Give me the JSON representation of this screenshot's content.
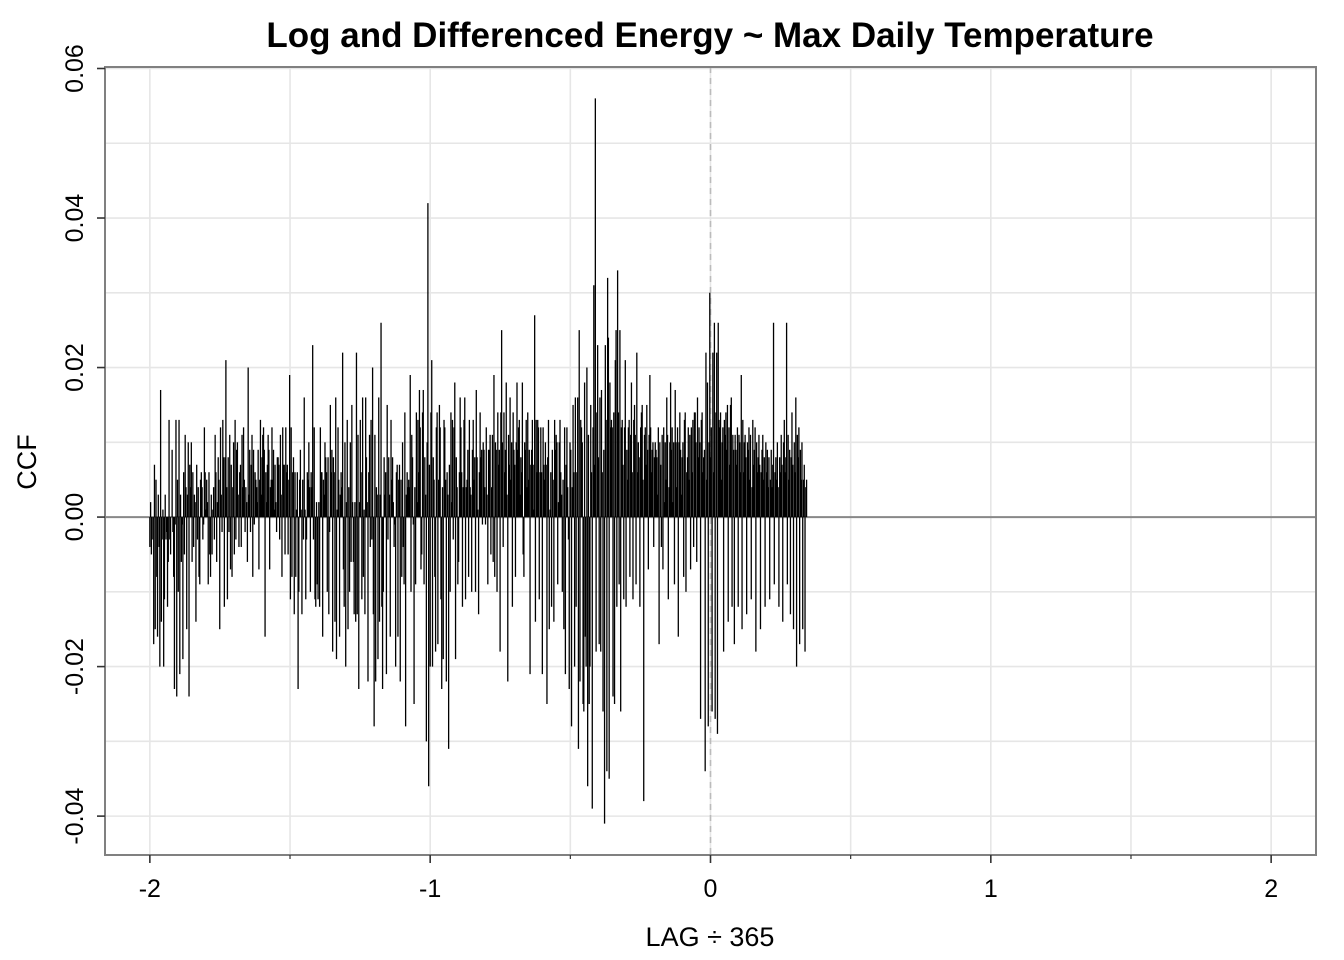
{
  "chart_data": {
    "type": "bar",
    "title": "Log and Differenced Energy ~ Max Daily Temperature",
    "xlabel": "LAG ÷ 365",
    "ylabel": "CCF",
    "xlim": [
      -2.16,
      2.16
    ],
    "ylim": [
      -0.0452,
      0.0602
    ],
    "x_ticks": [
      -2,
      -1,
      0,
      1,
      2
    ],
    "x_tick_labels": [
      "-2",
      "-1",
      "0",
      "1",
      "2"
    ],
    "y_ticks": [
      -0.04,
      -0.02,
      0.0,
      0.02,
      0.04,
      0.06
    ],
    "y_tick_labels": [
      "-0.04",
      "-0.02",
      "0.00",
      "0.02",
      "0.04",
      "0.06"
    ],
    "grid": true,
    "x_step": 0.00274,
    "x_start": -2,
    "y_reference_line": 0,
    "x_reference_line": 0,
    "color": "#000000",
    "values": [
      -0.004,
      0.002,
      -0.005,
      -0.003,
      0.0,
      -0.017,
      0.007,
      -0.015,
      0.005,
      -0.008,
      -0.016,
      0.003,
      -0.004,
      -0.02,
      0.017,
      -0.014,
      -0.003,
      0.001,
      -0.02,
      -0.011,
      0.003,
      -0.003,
      -0.002,
      -0.012,
      -0.006,
      0.013,
      -0.003,
      -0.005,
      0.0,
      0.009,
      -0.002,
      -0.008,
      -0.023,
      -0.001,
      0.013,
      -0.024,
      0.005,
      -0.01,
      0.013,
      -0.021,
      0.003,
      -0.006,
      -0.001,
      -0.019,
      0.006,
      -0.005,
      0.011,
      0.004,
      -0.015,
      0.003,
      0.01,
      -0.024,
      0.007,
      0.004,
      0.01,
      -0.006,
      0.006,
      -0.004,
      0.003,
      0.002,
      -0.014,
      0.007,
      -0.003,
      0.004,
      -0.008,
      -0.009,
      0.005,
      0.006,
      0.004,
      -0.003,
      -0.001,
      0.012,
      0.006,
      0.001,
      0.005,
      0.002,
      -0.009,
      0.006,
      -0.005,
      -0.008,
      0.003,
      -0.005,
      0.001,
      0.004,
      -0.003,
      0.011,
      0.006,
      -0.006,
      0.002,
      0.008,
      0.005,
      -0.015,
      0.012,
      0.003,
      -0.002,
      0.013,
      0.008,
      -0.012,
      0.008,
      0.021,
      0.004,
      -0.011,
      0.008,
      -0.002,
      0.011,
      -0.007,
      0.007,
      -0.008,
      0.004,
      0.01,
      -0.005,
      0.013,
      -0.003,
      0.009,
      0.01,
      0.003,
      -0.004,
      0.006,
      0.007,
      -0.004,
      0.011,
      0.004,
      0.012,
      0.005,
      -0.002,
      0.004,
      0.002,
      -0.006,
      0.02,
      0.003,
      0.009,
      -0.002,
      0.007,
      0.011,
      -0.008,
      0.009,
      -0.001,
      0.006,
      0.005,
      0.004,
      0.002,
      0.009,
      -0.007,
      0.005,
      0.013,
      0.003,
      0.008,
      0.011,
      0.012,
      0.009,
      -0.016,
      0.006,
      0.002,
      0.007,
      0.011,
      0.009,
      -0.007,
      0.004,
      0.005,
      0.012,
      0.005,
      0.009,
      0.001,
      0.007,
      0.002,
      -0.002,
      0.008,
      0.008,
      0.007,
      -0.003,
      0.011,
      0.003,
      -0.008,
      0.012,
      0.007,
      0.007,
      -0.005,
      0.012,
      0.006,
      0.007,
      -0.005,
      0.005,
      0.019,
      -0.011,
      0.012,
      -0.008,
      0.006,
      0.008,
      -0.013,
      0.006,
      -0.008,
      0.001,
      0.006,
      -0.023,
      -0.01,
      0.005,
      0.009,
      0.001,
      -0.013,
      0.005,
      -0.003,
      0.016,
      0.001,
      -0.011,
      -0.003,
      0.006,
      0.005,
      0.01,
      0.004,
      -0.01,
      0.006,
      0.004,
      0.023,
      -0.003,
      0.012,
      -0.011,
      -0.012,
      0.002,
      -0.009,
      -0.011,
      0.002,
      -0.012,
      0.012,
      0.006,
      0.006,
      -0.016,
      0.005,
      0.003,
      0.01,
      0.008,
      0.006,
      -0.01,
      0.008,
      -0.013,
      -0.002,
      0.015,
      0.006,
      0.009,
      -0.018,
      0.008,
      0.006,
      -0.014,
      0.016,
      -0.019,
      0.001,
      0.012,
      0.005,
      -0.016,
      0.003,
      0.006,
      0.004,
      0.022,
      -0.007,
      -0.012,
      0.01,
      -0.02,
      0.002,
      0.013,
      -0.015,
      0.004,
      -0.01,
      0.01,
      -0.006,
      0.015,
      0.002,
      -0.006,
      -0.013,
      0.002,
      -0.014,
      0.022,
      -0.013,
      0.011,
      -0.023,
      0.002,
      0.013,
      0.006,
      -0.011,
      0.016,
      -0.008,
      0.001,
      -0.013,
      0.016,
      0.008,
      0.002,
      -0.022,
      0.006,
      0.011,
      -0.004,
      0.013,
      -0.003,
      0.02,
      -0.013,
      -0.028,
      0.011,
      -0.022,
      0.004,
      0.003,
      -0.019,
      0.016,
      -0.014,
      0.003,
      0.026,
      -0.012,
      -0.023,
      -0.01,
      0.008,
      0.003,
      0.006,
      -0.021,
      0.015,
      -0.003,
      0.008,
      0.003,
      -0.016,
      0.013,
      0.005,
      0.008,
      0.002,
      -0.004,
      -0.001,
      -0.02,
      0.006,
      0.007,
      -0.016,
      0.005,
      0.007,
      -0.022,
      0.005,
      -0.008,
      0.01,
      -0.004,
      -0.009,
      0.014,
      -0.028,
      0.003,
      0.006,
      0.004,
      0.005,
      0.004,
      0.019,
      -0.01,
      0.011,
      0.008,
      -0.001,
      -0.025,
      0.004,
      -0.009,
      0.014,
      0.002,
      0.013,
      0.006,
      0.017,
      0.012,
      -0.007,
      -0.005,
      0.014,
      0.017,
      -0.009,
      0.008,
      0.003,
      -0.03,
      0.01,
      0.042,
      -0.036,
      0.007,
      -0.02,
      0.014,
      0.021,
      -0.02,
      0.008,
      0.005,
      -0.008,
      -0.018,
      0.012,
      0.014,
      -0.017,
      0.005,
      0.015,
      0.012,
      -0.011,
      -0.023,
      0.004,
      -0.019,
      0.013,
      0.012,
      0.005,
      -0.022,
      0.006,
      0.003,
      -0.031,
      0.007,
      -0.01,
      0.014,
      0.002,
      0.013,
      -0.003,
      0.012,
      0.018,
      -0.019,
      0.008,
      0.004,
      -0.009,
      -0.006,
      0.006,
      0.016,
      0.012,
      0.006,
      -0.012,
      0.004,
      0.013,
      0.016,
      -0.011,
      0.004,
      0.005,
      0.009,
      -0.008,
      0.013,
      0.004,
      0.003,
      -0.01,
      0.009,
      0.013,
      0.005,
      0.008,
      -0.01,
      0.017,
      0.008,
      0.001,
      -0.013,
      0.006,
      0.014,
      0.008,
      0.009,
      -0.001,
      0.01,
      0.009,
      0.004,
      -0.001,
      0.012,
      0.003,
      -0.009,
      0.009,
      0.009,
      0.011,
      -0.005,
      0.004,
      0.011,
      -0.006,
      0.019,
      -0.008,
      0.01,
      0.009,
      -0.01,
      0.014,
      0.007,
      0.009,
      -0.018,
      0.014,
      0.025,
      0.01,
      -0.004,
      0.014,
      0.006,
      0.009,
      0.018,
      0.003,
      -0.022,
      0.011,
      0.007,
      0.016,
      0.005,
      0.01,
      -0.012,
      0.014,
      0.009,
      0.007,
      -0.008,
      0.01,
      0.018,
      0.009,
      0.012,
      0.013,
      0.003,
      0.008,
      0.006,
      0.018,
      -0.005,
      -0.008,
      0.01,
      0.009,
      0.013,
      0.004,
      0.014,
      0.005,
      0.009,
      -0.021,
      0.007,
      0.009,
      0.013,
      0.007,
      0.001,
      0.027,
      -0.014,
      0.013,
      0.006,
      0.013,
      0.012,
      -0.011,
      0.006,
      0.012,
      0.006,
      -0.021,
      0.012,
      0.007,
      0.005,
      0.01,
      0.007,
      -0.025,
      0.008,
      0.013,
      -0.015,
      0.001,
      0.006,
      -0.012,
      0.009,
      0.005,
      -0.014,
      0.013,
      0.009,
      0.011,
      0.01,
      -0.009,
      0.002,
      0.01,
      0.013,
      0.006,
      0.003,
      -0.01,
      0.005,
      -0.015,
      0.012,
      -0.021,
      0.007,
      0.012,
      0.004,
      -0.003,
      -0.023,
      0.01,
      0.009,
      -0.028,
      0.004,
      0.015,
      0.006,
      -0.02,
      0.016,
      -0.012,
      0.006,
      0.016,
      -0.031,
      0.025,
      -0.022,
      0.013,
      0.012,
      0.01,
      -0.025,
      -0.026,
      0.018,
      -0.016,
      -0.02,
      0.02,
      -0.036,
      0.011,
      -0.025,
      -0.02,
      0.015,
      0.006,
      -0.039,
      0.012,
      0.031,
      0.007,
      0.056,
      -0.018,
      0.014,
      0.023,
      0.008,
      -0.017,
      0.016,
      -0.018,
      0.017,
      0.006,
      -0.026,
      0.009,
      -0.041,
      0.023,
      0.013,
      -0.034,
      0.032,
      0.024,
      -0.035,
      0.018,
      0.012,
      0.013,
      0.012,
      -0.024,
      0.014,
      -0.025,
      0.021,
      0.025,
      -0.012,
      0.033,
      0.014,
      -0.009,
      0.025,
      -0.026,
      0.012,
      0.013,
      0.007,
      -0.011,
      0.012,
      0.021,
      -0.012,
      0.009,
      0.005,
      0.012,
      0.013,
      -0.008,
      0.011,
      0.018,
      0.006,
      -0.011,
      0.013,
      0.015,
      0.011,
      -0.009,
      0.022,
      0.006,
      0.01,
      0.008,
      -0.012,
      0.012,
      0.014,
      0.015,
      0.005,
      -0.038,
      0.011,
      0.012,
      0.007,
      0.015,
      0.009,
      -0.007,
      0.011,
      0.019,
      0.012,
      0.006,
      0.009,
      0.01,
      -0.004,
      0.008,
      0.01,
      0.009,
      0.008,
      0.003,
      0.012,
      -0.017,
      0.01,
      0.007,
      -0.004,
      0.011,
      -0.007,
      0.012,
      0.002,
      0.01,
      0.005,
      0.016,
      0.011,
      -0.011,
      0.004,
      0.01,
      0.018,
      0.009,
      0.012,
      0.002,
      0.01,
      -0.009,
      0.017,
      0.01,
      0.004,
      0.012,
      -0.016,
      0.01,
      0.014,
      0.009,
      0.003,
      0.008,
      0.01,
      -0.008,
      0.013,
      0.014,
      -0.01,
      0.006,
      0.008,
      0.012,
      0.005,
      0.011,
      -0.007,
      0.012,
      0.006,
      0.013,
      -0.004,
      0.014,
      0.014,
      0.01,
      -0.006,
      0.016,
      0.008,
      0.012,
      0.01,
      -0.027,
      0.013,
      0.014,
      0.006,
      0.008,
      0.009,
      -0.034,
      0.022,
      0.005,
      0.018,
      -0.028,
      0.01,
      0.03,
      0.008,
      0.012,
      -0.026,
      0.022,
      0.006,
      0.026,
      -0.027,
      0.014,
      0.022,
      -0.029,
      0.026,
      0.013,
      0.012,
      0.014,
      0.005,
      0.01,
      0.012,
      -0.018,
      0.013,
      0.011,
      0.014,
      0.009,
      0.015,
      -0.014,
      0.012,
      0.007,
      0.015,
      0.016,
      -0.012,
      0.011,
      0.009,
      -0.017,
      0.011,
      0.009,
      0.007,
      0.012,
      -0.012,
      0.011,
      0.01,
      0.006,
      0.019,
      -0.015,
      0.013,
      0.006,
      0.01,
      0.011,
      0.008,
      -0.013,
      0.01,
      0.009,
      0.012,
      0.005,
      0.011,
      -0.011,
      0.004,
      0.013,
      0.007,
      0.009,
      0.012,
      -0.018,
      0.01,
      0.006,
      0.008,
      0.011,
      0.007,
      -0.015,
      0.006,
      0.009,
      0.011,
      0.005,
      0.008,
      -0.012,
      0.01,
      0.006,
      0.009,
      0.004,
      0.008,
      -0.011,
      0.005,
      0.009,
      0.004,
      0.007,
      0.026,
      -0.009,
      0.006,
      0.008,
      0.005,
      0.01,
      0.004,
      -0.012,
      0.008,
      0.006,
      0.011,
      0.007,
      -0.014,
      0.01,
      0.013,
      0.006,
      0.008,
      0.026,
      -0.009,
      0.011,
      0.005,
      0.009,
      -0.013,
      0.008,
      0.014,
      0.007,
      -0.015,
      0.01,
      0.006,
      0.016,
      -0.02,
      0.011,
      0.008,
      0.012,
      -0.017,
      0.009,
      0.005,
      0.01,
      -0.015,
      0.005,
      0.007,
      -0.018,
      0.004,
      0.005
    ]
  }
}
